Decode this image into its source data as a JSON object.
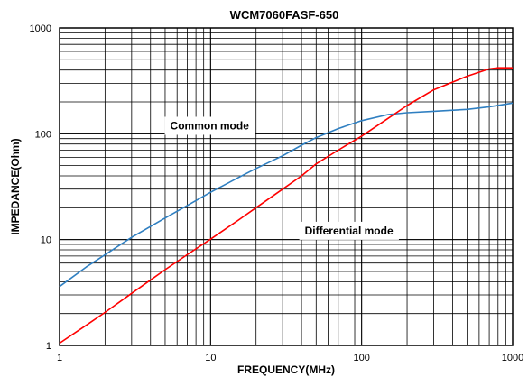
{
  "chart_data": {
    "type": "line",
    "title": "WCM7060FASF-650",
    "xlabel": "FREQUENCY(MHz)",
    "ylabel": "IMPEDANCE(Ohm)",
    "x_scale": "log",
    "y_scale": "log",
    "xlim": [
      1,
      1000
    ],
    "ylim": [
      1,
      1000
    ],
    "grid": true,
    "x_ticks": [
      {
        "value": 1,
        "label": "1"
      },
      {
        "value": 10,
        "label": "10"
      },
      {
        "value": 100,
        "label": "100"
      },
      {
        "value": 1000,
        "label": "1000"
      }
    ],
    "y_ticks": [
      {
        "value": 1,
        "label": "1"
      },
      {
        "value": 10,
        "label": "10"
      },
      {
        "value": 100,
        "label": "100"
      },
      {
        "value": 1000,
        "label": "1000"
      }
    ],
    "series": [
      {
        "color": "#2f7fc1",
        "x": [
          1,
          1.5,
          2,
          3,
          5,
          7,
          10,
          15,
          20,
          30,
          40,
          50,
          70,
          100,
          150,
          200,
          300,
          500,
          700,
          1000
        ],
        "y": [
          3.6,
          5.5,
          7.2,
          10.5,
          16,
          21,
          28,
          38,
          47,
          62,
          78,
          92,
          112,
          133,
          152,
          158,
          163,
          170,
          180,
          195
        ]
      },
      {
        "color": "#ff0000",
        "x": [
          1,
          1.5,
          2,
          3,
          5,
          7,
          10,
          15,
          20,
          30,
          40,
          50,
          70,
          100,
          150,
          200,
          300,
          500,
          700,
          800,
          1000
        ],
        "y": [
          1.05,
          1.55,
          2.05,
          3.1,
          5.2,
          7.2,
          10.1,
          15,
          20,
          30,
          40,
          52,
          70,
          95,
          140,
          185,
          260,
          350,
          410,
          420,
          420
        ]
      }
    ],
    "annotations": [
      {
        "text": "Common mode",
        "x": 5.4,
        "y": 110
      },
      {
        "text": "Differential mode",
        "x": 42,
        "y": 11.2
      }
    ]
  }
}
